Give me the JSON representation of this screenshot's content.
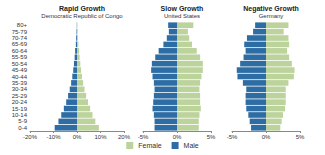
{
  "chart_data": [
    {
      "type": "bar",
      "orientation": "horizontal",
      "stacked": true,
      "grid": false,
      "legend": "bottom",
      "title": "Rapid Growth",
      "subtitle": "Democratic Republic of Congo",
      "categories": [
        "0-4",
        "5-9",
        "10-14",
        "15-19",
        "20-24",
        "25-29",
        "30-34",
        "35-39",
        "40-44",
        "45-49",
        "50-54",
        "55-59",
        "60-64",
        "65-69",
        "70-74",
        "75-79",
        "80+"
      ],
      "xlim": [
        -20,
        20
      ],
      "xticks": [
        {
          "value": -20,
          "label": "-20%"
        },
        {
          "value": -10,
          "label": "-10%"
        },
        {
          "value": 0,
          "label": "0%"
        },
        {
          "value": 10,
          "label": "10%"
        },
        {
          "value": 20,
          "label": "20%"
        }
      ],
      "series": [
        {
          "name": "Female",
          "color": "#bcd39c",
          "values": [
            9.3,
            7.8,
            6.6,
            5.6,
            4.7,
            3.9,
            3.2,
            2.6,
            2.1,
            1.7,
            1.4,
            1.1,
            0.9,
            0.6,
            0.4,
            0.3,
            0.2
          ]
        },
        {
          "name": "Male",
          "color": "#2e6da4",
          "values": [
            -9.5,
            -7.9,
            -6.7,
            -5.6,
            -4.6,
            -3.8,
            -3.1,
            -2.5,
            -2.0,
            -1.6,
            -1.3,
            -1.0,
            -0.8,
            -0.5,
            -0.35,
            -0.2,
            -0.1
          ]
        }
      ]
    },
    {
      "type": "bar",
      "orientation": "horizontal",
      "stacked": true,
      "grid": false,
      "legend": "bottom",
      "tick_labels": "x",
      "title": "Slow Growth",
      "subtitle": "United States",
      "categories": [
        "0-4",
        "5-9",
        "10-14",
        "15-19",
        "20-24",
        "25-29",
        "30-34",
        "35-39",
        "40-44",
        "45-49",
        "50-54",
        "55-59",
        "60-64",
        "65-69",
        "70-74",
        "75-79",
        "80+"
      ],
      "xlim": [
        -5,
        5
      ],
      "xticks": [
        {
          "value": -5,
          "label": "-5%"
        },
        {
          "value": 0,
          "label": "0%"
        },
        {
          "value": 5,
          "label": "5%"
        }
      ],
      "series": [
        {
          "name": "Female",
          "color": "#bcd39c",
          "values": [
            3.2,
            3.2,
            3.3,
            3.5,
            3.4,
            3.4,
            3.3,
            3.4,
            3.6,
            3.8,
            3.8,
            3.4,
            2.9,
            2.2,
            1.8,
            1.6,
            2.4
          ]
        },
        {
          "name": "Male",
          "color": "#2e6da4",
          "values": [
            -3.3,
            -3.3,
            -3.4,
            -3.6,
            -3.5,
            -3.4,
            -3.3,
            -3.4,
            -3.6,
            -3.8,
            -3.7,
            -3.2,
            -2.7,
            -2.0,
            -1.5,
            -1.2,
            -1.3
          ]
        }
      ]
    },
    {
      "type": "bar",
      "orientation": "horizontal",
      "stacked": true,
      "grid": false,
      "legend": "bottom",
      "tick_labels": "x",
      "title": "Negative Growth",
      "subtitle": "Germany",
      "categories": [
        "0-4",
        "5-9",
        "10-14",
        "15-19",
        "20-24",
        "25-29",
        "30-34",
        "35-39",
        "40-44",
        "45-49",
        "50-54",
        "55-59",
        "60-64",
        "65-69",
        "70-74",
        "75-79",
        "80+"
      ],
      "xlim": [
        -5,
        5
      ],
      "xticks": [
        {
          "value": -5,
          "label": "-5%"
        },
        {
          "value": 0,
          "label": "0%"
        },
        {
          "value": 5,
          "label": "5%"
        }
      ],
      "series": [
        {
          "name": "Female",
          "color": "#bcd39c",
          "values": [
            2.1,
            2.3,
            2.5,
            2.8,
            2.9,
            2.9,
            2.9,
            3.3,
            4.1,
            4.2,
            3.8,
            3.4,
            3.1,
            3.4,
            3.3,
            2.6,
            3.3
          ]
        },
        {
          "name": "Male",
          "color": "#2e6da4",
          "values": [
            -2.2,
            -2.4,
            -2.6,
            -2.9,
            -3.0,
            -3.0,
            -2.9,
            -3.4,
            -4.2,
            -4.3,
            -3.8,
            -3.3,
            -3.0,
            -3.2,
            -2.8,
            -1.9,
            -1.6
          ]
        }
      ]
    }
  ]
}
